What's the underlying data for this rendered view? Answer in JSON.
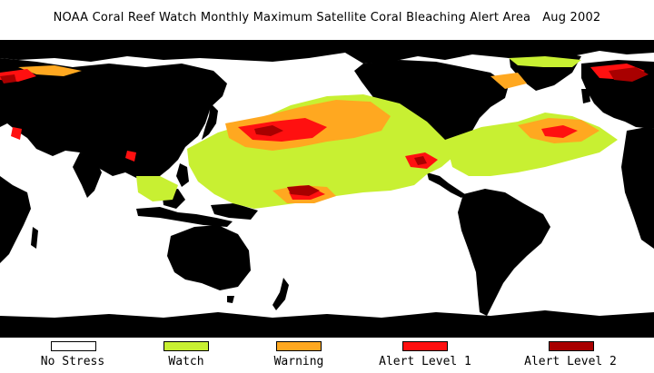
{
  "map": {
    "title": "NOAA Coral Reef Watch Monthly Maximum Satellite Coral Bleaching Alert Area",
    "date": "Aug 2002"
  },
  "legend": [
    {
      "label": "No Stress",
      "color": "#ffffff"
    },
    {
      "label": "Watch",
      "color": "#c8f032"
    },
    {
      "label": "Warning",
      "color": "#ffa820"
    },
    {
      "label": "Alert Level 1",
      "color": "#ff1010"
    },
    {
      "label": "Alert Level 2",
      "color": "#a80000"
    }
  ],
  "colors": {
    "land": "#000000",
    "ocean": "#ffffff"
  }
}
